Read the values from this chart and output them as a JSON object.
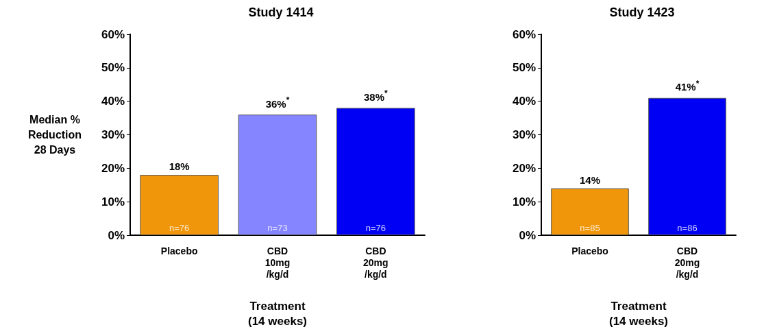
{
  "chart_data": [
    {
      "type": "bar",
      "title": "Study 1414",
      "ylabel": "Median %\nReduction\n28 Days",
      "xlabel": "Treatment\n(14 weeks)",
      "categories": [
        "Placebo",
        "CBD\n10mg\n/kg/d",
        "CBD\n20mg\n/kg/d"
      ],
      "values": [
        18,
        36,
        38
      ],
      "colors": [
        "#f0960a",
        "#8585ff",
        "#0000f5"
      ],
      "value_labels": [
        "18%",
        "36%$^{*}$",
        "38%$^{*}$"
      ],
      "annotations": [
        {
          "text": "n=76",
          "x": "Placebo",
          "y": 0
        },
        {
          "text": "n=73",
          "x": "CBD\n10mg\n/kg/d",
          "y": 0
        },
        {
          "text": "n=76",
          "x": "CBD\n20mg\n/kg/d",
          "y": 0
        }
      ],
      "ylim": [
        0,
        60
      ],
      "yticks": [
        {
          "value": 0,
          "label": "0%"
        },
        {
          "value": 10,
          "label": "10%"
        },
        {
          "value": 20,
          "label": "20%"
        },
        {
          "value": 30,
          "label": "30%"
        },
        {
          "value": 40,
          "label": "40%"
        },
        {
          "value": 50,
          "label": "50%"
        },
        {
          "value": 60,
          "label": "60%"
        }
      ],
      "grid": false
    },
    {
      "type": "bar",
      "title": "Study 1423",
      "xlabel": "Treatment\n(14 weeks)",
      "categories": [
        "Placebo",
        "CBD\n20mg\n/kg/d"
      ],
      "values": [
        14,
        41
      ],
      "colors": [
        "#f0960a",
        "#0000f5"
      ],
      "value_labels": [
        "14%",
        "41%$^{*}$"
      ],
      "annotations": [
        {
          "text": "n=85",
          "x": "Placebo",
          "y": 0
        },
        {
          "text": "n=86",
          "x": "CBD\n20mg\n/kg/d",
          "y": 0
        }
      ],
      "ylim": [
        0,
        60
      ],
      "yticks": [
        {
          "value": 0,
          "label": "0%"
        },
        {
          "value": 10,
          "label": "10%"
        },
        {
          "value": 20,
          "label": "20%"
        },
        {
          "value": 30,
          "label": "30%"
        },
        {
          "value": 40,
          "label": "40%"
        },
        {
          "value": 50,
          "label": "50%"
        },
        {
          "value": 60,
          "label": "60%"
        }
      ],
      "grid": false
    }
  ]
}
